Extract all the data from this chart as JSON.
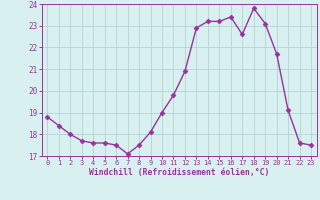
{
  "x": [
    0,
    1,
    2,
    3,
    4,
    5,
    6,
    7,
    8,
    9,
    10,
    11,
    12,
    13,
    14,
    15,
    16,
    17,
    18,
    19,
    20,
    21,
    22,
    23
  ],
  "y": [
    18.8,
    18.4,
    18.0,
    17.7,
    17.6,
    17.6,
    17.5,
    17.1,
    17.5,
    18.1,
    19.0,
    19.8,
    20.9,
    22.9,
    23.2,
    23.2,
    23.4,
    22.6,
    23.8,
    23.1,
    21.7,
    19.1,
    17.6,
    17.5
  ],
  "line_color": "#993399",
  "marker": "D",
  "marker_size": 2.5,
  "bg_color": "#d8f0f0",
  "grid_color": "#b8d8d8",
  "xlabel": "Windchill (Refroidissement éolien,°C)",
  "xlabel_color": "#993399",
  "tick_color": "#993399",
  "ylim": [
    17,
    24
  ],
  "xlim": [
    -0.5,
    23.5
  ],
  "yticks": [
    17,
    18,
    19,
    20,
    21,
    22,
    23,
    24
  ],
  "xticks": [
    0,
    1,
    2,
    3,
    4,
    5,
    6,
    7,
    8,
    9,
    10,
    11,
    12,
    13,
    14,
    15,
    16,
    17,
    18,
    19,
    20,
    21,
    22,
    23
  ],
  "line_width": 1.0
}
